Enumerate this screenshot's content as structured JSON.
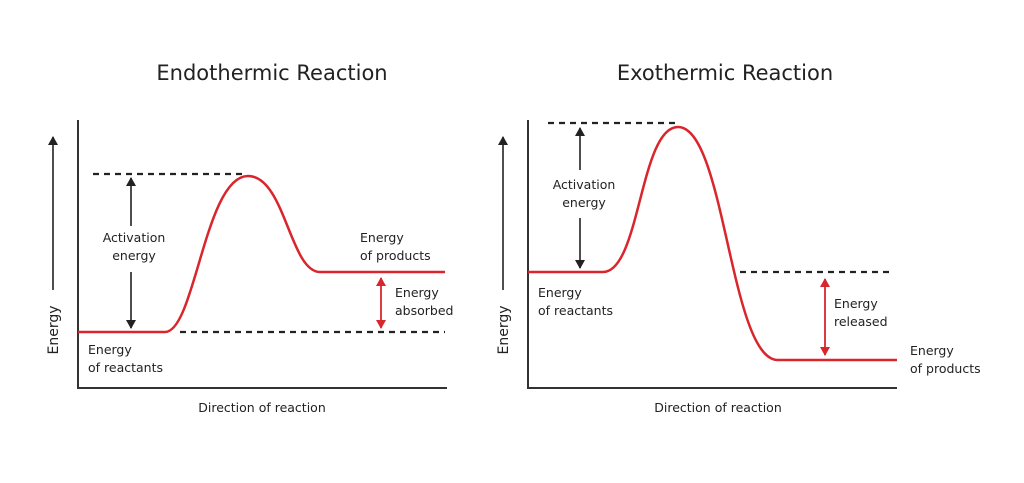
{
  "diagrams": [
    {
      "title": "Endothermic Reaction",
      "y_axis_label": "Energy",
      "x_axis_label": "Direction of reaction",
      "activation_label": [
        "Activation",
        "energy"
      ],
      "reactants_label": [
        "Energy",
        "of reactants"
      ],
      "products_label": [
        "Energy",
        "of products"
      ],
      "change_label": [
        "Energy",
        "absorbed"
      ]
    },
    {
      "title": "Exothermic Reaction",
      "y_axis_label": "Energy",
      "x_axis_label": "Direction of reaction",
      "activation_label": [
        "Activation",
        "energy"
      ],
      "reactants_label": [
        "Energy",
        "of reactants"
      ],
      "products_label": [
        "Energy",
        "of products"
      ],
      "change_label": [
        "Energy",
        "released"
      ]
    }
  ]
}
